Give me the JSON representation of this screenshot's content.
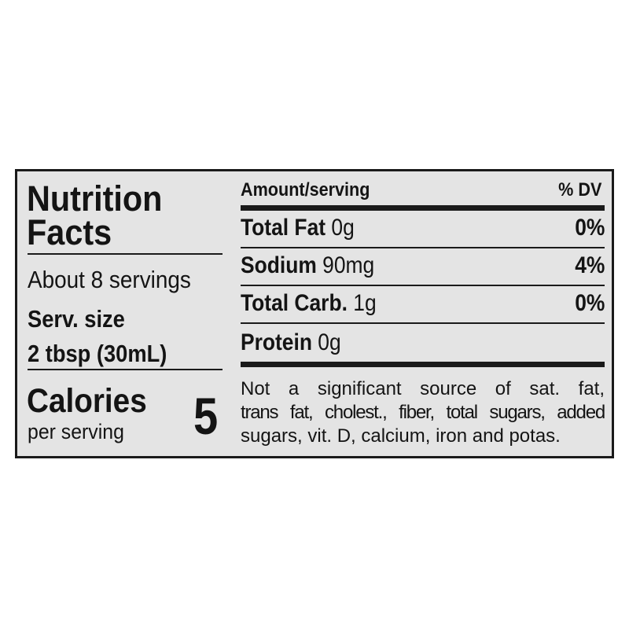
{
  "label": {
    "title_line1": "Nutrition",
    "title_line2": "Facts",
    "servings": "About 8 servings",
    "serving_size_label": "Serv. size",
    "serving_size_value": "2 tbsp (30mL)",
    "calories_label": "Calories",
    "calories_sub": "per serving",
    "calories_value": "5",
    "amount_header": "Amount/serving",
    "dv_header": "% DV",
    "nutrients": [
      {
        "name": "Total Fat",
        "amount": "0g",
        "dv": "0%"
      },
      {
        "name": "Sodium",
        "amount": "90mg",
        "dv": "4%"
      },
      {
        "name": "Total Carb.",
        "amount": "1g",
        "dv": "0%"
      },
      {
        "name": "Protein",
        "amount": "0g",
        "dv": ""
      }
    ],
    "footnote_lines": [
      "Not a significant source of sat. fat,",
      "trans fat, cholest., fiber, total sugars, added",
      "sugars, vit. D, calcium, iron and potas."
    ]
  }
}
